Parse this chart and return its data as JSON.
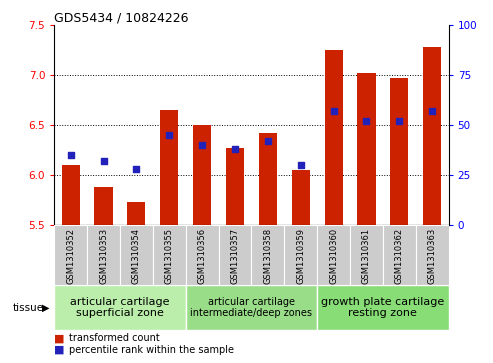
{
  "title": "GDS5434 / 10824226",
  "samples": [
    "GSM1310352",
    "GSM1310353",
    "GSM1310354",
    "GSM1310355",
    "GSM1310356",
    "GSM1310357",
    "GSM1310358",
    "GSM1310359",
    "GSM1310360",
    "GSM1310361",
    "GSM1310362",
    "GSM1310363"
  ],
  "red_values": [
    6.1,
    5.88,
    5.73,
    6.65,
    6.5,
    6.27,
    6.42,
    6.05,
    7.25,
    7.02,
    6.97,
    7.28
  ],
  "blue_values_pct": [
    35,
    32,
    28,
    45,
    40,
    38,
    42,
    30,
    57,
    52,
    52,
    57
  ],
  "ylim_left": [
    5.5,
    7.5
  ],
  "ylim_right": [
    0,
    100
  ],
  "yticks_left": [
    5.5,
    6.0,
    6.5,
    7.0,
    7.5
  ],
  "yticks_right": [
    0,
    25,
    50,
    75,
    100
  ],
  "bar_color": "#cc2200",
  "dot_color": "#2222bb",
  "bg_color": "#ffffff",
  "tickbox_color": "#cccccc",
  "tissue_groups": [
    {
      "label": "articular cartilage\nsuperficial zone",
      "start": 0,
      "end": 3,
      "color": "#bbeeaa",
      "fontsize": 8
    },
    {
      "label": "articular cartilage\nintermediate/deep zones",
      "start": 4,
      "end": 7,
      "color": "#99dd88",
      "fontsize": 7
    },
    {
      "label": "growth plate cartilage\nresting zone",
      "start": 8,
      "end": 11,
      "color": "#88dd77",
      "fontsize": 8
    }
  ],
  "legend_red": "transformed count",
  "legend_blue": "percentile rank within the sample",
  "bar_width": 0.55,
  "grid_yticks": [
    6.0,
    6.5,
    7.0
  ]
}
